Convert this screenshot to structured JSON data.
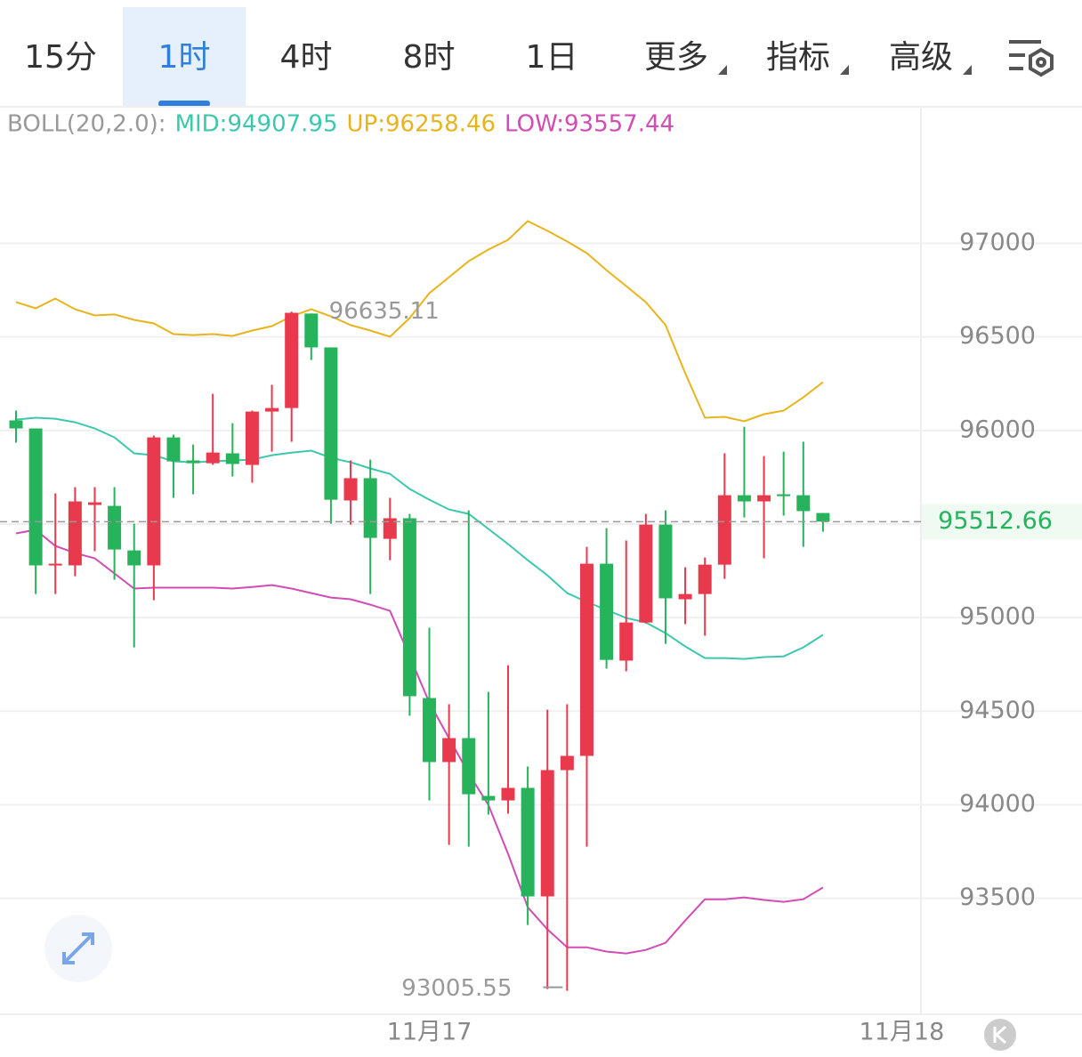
{
  "tabs": [
    "15分",
    "1时",
    "4时",
    "8时",
    "1日",
    "更多",
    "指标",
    "高级"
  ],
  "selected_tab": 1,
  "chart_data": {
    "type": "candlestick",
    "indicator": "BOLL(20,2.0):",
    "categories": [
      null,
      null,
      null,
      null,
      null,
      null,
      null,
      null,
      null,
      null,
      null,
      null,
      null,
      null,
      null,
      null,
      null,
      null,
      null,
      null,
      null,
      "11月17",
      null,
      null,
      null,
      null,
      null,
      null,
      null,
      null,
      null,
      null,
      null,
      null,
      null,
      null,
      null,
      null,
      null,
      null,
      null,
      null,
      null,
      null,
      null,
      "11月18"
    ],
    "open": [
      96054,
      96011,
      95279,
      95279,
      95602,
      95597,
      95359,
      95279,
      95963,
      95840,
      95825,
      95878,
      95816,
      96101,
      96120,
      96625,
      96444,
      95626,
      95745,
      95421,
      95531,
      94570,
      94228,
      94356,
      94047,
      94023,
      94090,
      93510,
      94185,
      94261,
      95288,
      94770,
      94974,
      95497,
      95098,
      95126,
      95283,
      95654,
      95621,
      95659,
      95654,
      95559,
      null,
      null,
      null,
      null
    ],
    "high": [
      96106,
      96011,
      95664,
      95697,
      95697,
      95697,
      95502,
      95973,
      95978,
      95925,
      96196,
      96039,
      96106,
      96244,
      96635.11,
      96625,
      96444,
      95840,
      95844,
      95640,
      95554,
      94946,
      94537,
      95573,
      94603,
      94746,
      94204,
      94508,
      94537,
      95378,
      95478,
      95412,
      95554,
      95573,
      95269,
      95321,
      95878,
      96020,
      95863,
      95887,
      95940,
      95559,
      null,
      null,
      null,
      null
    ],
    "low": [
      95935,
      95126,
      95126,
      95221,
      95355,
      95202,
      94841,
      95093,
      95640,
      95659,
      95816,
      95754,
      95721,
      95887,
      95940,
      96377,
      95502,
      95497,
      95126,
      95307,
      94475,
      94023,
      93785,
      93776,
      93947,
      93952,
      93357,
      93015,
      93005.55,
      93776,
      94727,
      94713,
      94969,
      94860,
      94965,
      94903,
      95207,
      95535,
      95317,
      95545,
      95378,
      95459,
      null,
      null,
      null,
      null
    ],
    "close": [
      96011,
      95279,
      95288,
      95621,
      95616,
      95364,
      95279,
      95963,
      95835,
      95825,
      95882,
      95821,
      96101,
      96120,
      96629,
      96444,
      95630,
      95745,
      95426,
      95531,
      94580,
      94228,
      94356,
      94056,
      94023,
      94090,
      93510,
      94185,
      94261,
      95288,
      94774,
      94974,
      95497,
      95103,
      95126,
      95283,
      95654,
      95621,
      95654,
      95649,
      95569,
      95512.66,
      null,
      null,
      null,
      null
    ],
    "up_color": "#e8394d",
    "down_color": "#27b35b",
    "series": [
      {
        "name": "MID:94907.95",
        "color": "#3cc8ac",
        "values": [
          96058,
          96068,
          96063,
          96044,
          96011,
          95963,
          95878,
          95868,
          95835,
          95830,
          95835,
          95840,
          95844,
          95868,
          95882,
          95892,
          95854,
          95830,
          95797,
          95768,
          95688,
          95630,
          95578,
          95554,
          95474,
          95393,
          95307,
          95226,
          95131,
          95084,
          95041,
          94998,
          94974,
          94917,
          94846,
          94784,
          94784,
          94779,
          94789,
          94793,
          94841,
          94907.95,
          null,
          null,
          null,
          null
        ]
      },
      {
        "name": "UP:96258.46",
        "color": "#e8b41e",
        "values": [
          96686,
          96653,
          96705,
          96648,
          96615,
          96620,
          96591,
          96572,
          96515,
          96510,
          96515,
          96505,
          96534,
          96558,
          96610,
          96648,
          96610,
          96563,
          96534,
          96501,
          96601,
          96734,
          96819,
          96905,
          96967,
          97019,
          97119,
          97067,
          97010,
          96948,
          96857,
          96772,
          96686,
          96563,
          96306,
          96068,
          96073,
          96049,
          96087,
          96106,
          96177,
          96258.46,
          null,
          null,
          null,
          null
        ]
      },
      {
        "name": "LOW:93557.44",
        "color": "#d24cb5",
        "values": [
          95450,
          95469,
          95383,
          95345,
          95317,
          95236,
          95155,
          95160,
          95160,
          95160,
          95160,
          95155,
          95164,
          95174,
          95155,
          95131,
          95107,
          95098,
          95069,
          95036,
          94793,
          94546,
          94356,
          94166,
          93999,
          93738,
          93452,
          93334,
          93238,
          93238,
          93215,
          93205,
          93224,
          93262,
          93381,
          93495,
          93495,
          93505,
          93491,
          93481,
          93495,
          93557.44,
          null,
          null,
          null,
          null
        ]
      }
    ],
    "high_label": "96635.11",
    "low_label": "93005.55",
    "price_label": "95512.66",
    "ylim": [
      92880,
      97730
    ],
    "yticks": [
      93500,
      94000,
      94500,
      95000,
      95500,
      96000,
      96500,
      97000
    ],
    "grid": true
  }
}
